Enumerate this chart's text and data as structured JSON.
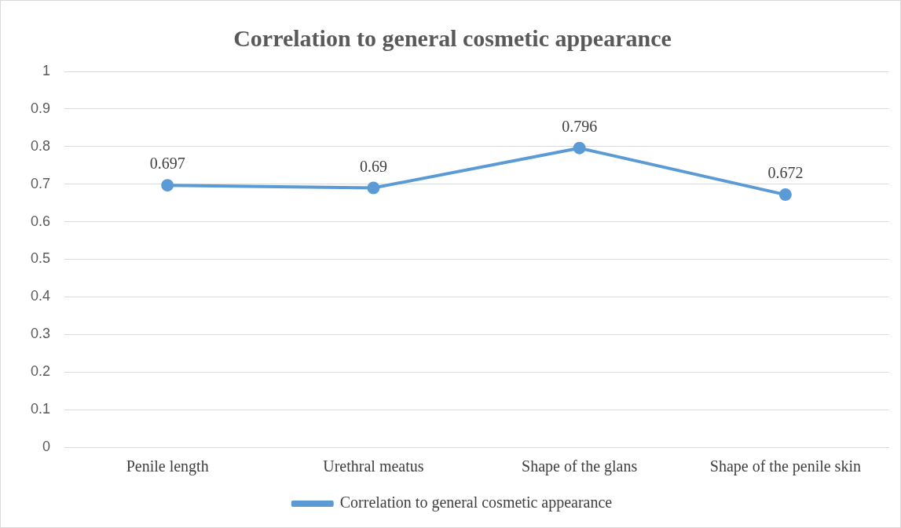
{
  "chart_data": {
    "type": "line",
    "title": "Correlation to general cosmetic appearance",
    "categories": [
      "Penile length",
      "Urethral meatus",
      "Shape of the glans",
      "Shape of the penile skin"
    ],
    "series": [
      {
        "name": "Correlation to general cosmetic appearance",
        "color": "#5b9bd5",
        "values": [
          0.697,
          0.69,
          0.796,
          0.672
        ]
      }
    ],
    "ylim": [
      0,
      1
    ],
    "yticks": [
      0,
      0.1,
      0.2,
      0.3,
      0.4,
      0.5,
      0.6,
      0.7,
      0.8,
      0.9,
      1
    ],
    "grid": "y",
    "legend": "bottom",
    "marker": "circle",
    "line_style": "solid",
    "data_labels": true
  }
}
